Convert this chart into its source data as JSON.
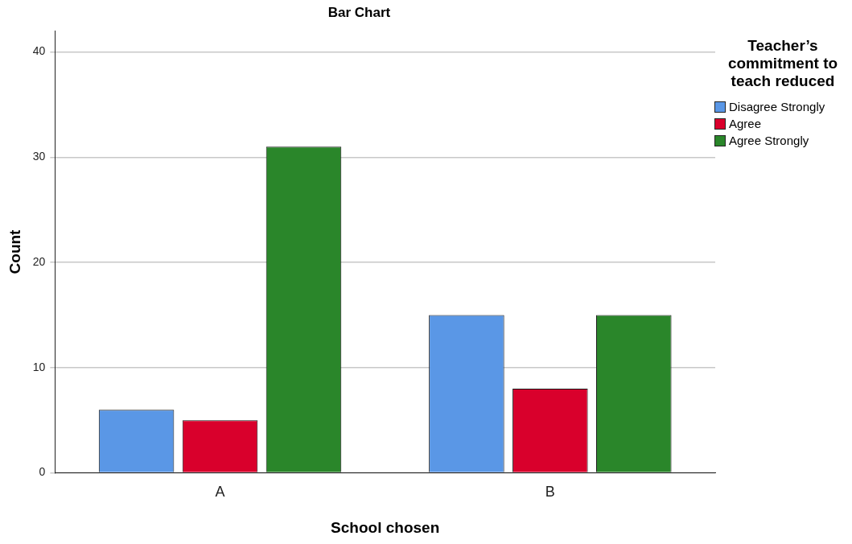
{
  "chart_data": {
    "type": "bar",
    "title": "Bar Chart",
    "xlabel": "School chosen",
    "ylabel": "Count",
    "legend_title": "Teacher’s commitment to teach reduced",
    "categories": [
      "A",
      "B"
    ],
    "series": [
      {
        "name": "Disagree Strongly",
        "color": "#5a97e6",
        "values": [
          6,
          15
        ]
      },
      {
        "name": "Agree",
        "color": "#d9002c",
        "values": [
          5,
          8
        ]
      },
      {
        "name": "Agree Strongly",
        "color": "#2a862a",
        "values": [
          31,
          15
        ]
      }
    ],
    "ylim": [
      0,
      42
    ],
    "yticks": [
      0,
      10,
      20,
      30,
      40
    ],
    "grid": "y",
    "legend": "right"
  }
}
